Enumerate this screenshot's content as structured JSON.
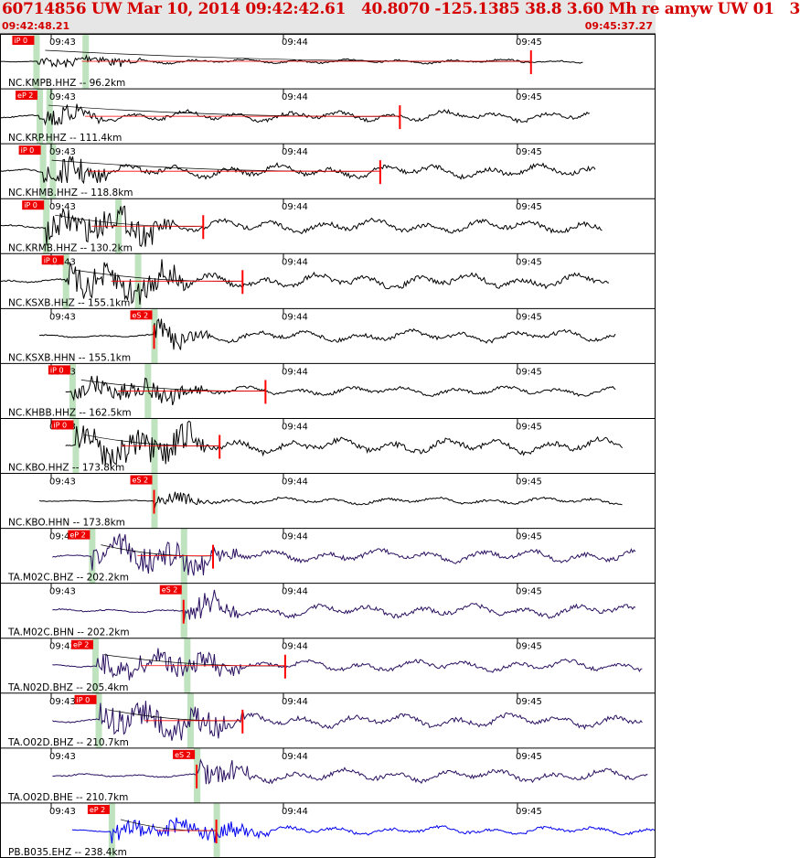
{
  "header": {
    "title": "60714856 UW Mar 10, 2014 09:42:42.61   40.8070 -125.1385 38.8 3.60 Mh re amyw UW 01   3",
    "start_time": "09:42:48.21",
    "end_time": "09:45:37.27"
  },
  "time_ticks": [
    "09:43",
    "09:44",
    "09:45"
  ],
  "colors": {
    "title": "#d40000",
    "header_bg": "#e6e6e6",
    "pick_marker": "#ff0000",
    "arrival_band": "#bfe3bf",
    "trace_nc": "#000000",
    "trace_ta": "#2a1060",
    "trace_pb": "#0000ee",
    "grid": "#000000"
  },
  "traces": [
    {
      "label": "NC.KMPB.HHZ -- 96.2km",
      "pick": "iP 0",
      "color": "#000000",
      "amp": 6,
      "start": 0.0,
      "end": 0.89,
      "pick_at": 0.055,
      "band": 0.13,
      "red_at": 0.81
    },
    {
      "label": "NC.KRP.HHZ -- 111.4km",
      "pick": "eP 2",
      "color": "#000000",
      "amp": 14,
      "start": 0.0,
      "end": 0.9,
      "pick_at": 0.06,
      "band": 0.075,
      "red_at": 0.61
    },
    {
      "label": "NC.KHMB.HHZ -- 118.8km",
      "pick": "iP 0",
      "color": "#000000",
      "amp": 18,
      "start": 0.0,
      "end": 0.91,
      "pick_at": 0.065,
      "band": 0.08,
      "red_at": 0.58
    },
    {
      "label": "NC.KRMB.HHZ -- 130.2km",
      "pick": "iP 0",
      "color": "#000000",
      "amp": 18,
      "start": 0.0,
      "end": 0.92,
      "pick_at": 0.07,
      "band": 0.18,
      "red_at": 0.31
    },
    {
      "label": "NC.KSXB.HHZ -- 155.1km",
      "pick": "iP 0",
      "color": "#000000",
      "amp": 20,
      "start": 0.0,
      "end": 0.93,
      "pick_at": 0.1,
      "band": 0.21,
      "red_at": 0.37
    },
    {
      "label": "NC.KSXB.HHN -- 155.1km",
      "pick": "eS 2",
      "color": "#000000",
      "amp": 15,
      "start": 0.06,
      "end": 0.94,
      "pick_at": 0.235,
      "band": 0.235,
      "red_at": 0.235
    },
    {
      "label": "NC.KHBB.HHZ -- 162.5km",
      "pick": "iP 0",
      "color": "#000000",
      "amp": 12,
      "start": 0.1,
      "end": 0.94,
      "pick_at": 0.11,
      "band": 0.225,
      "red_at": 0.405
    },
    {
      "label": "NC.KBO.HHZ -- 173.8km",
      "pick": "iP 0",
      "color": "#000000",
      "amp": 20,
      "start": 0.1,
      "end": 0.95,
      "pick_at": 0.115,
      "band": 0.235,
      "red_at": 0.335
    },
    {
      "label": "NC.KBO.HHN -- 173.8km",
      "pick": "eS 2",
      "color": "#000000",
      "amp": 9,
      "start": 0.06,
      "end": 0.95,
      "pick_at": 0.235,
      "band": 0.235,
      "red_at": 0.235
    },
    {
      "label": "TA.M02C.BHZ -- 202.2km",
      "pick": "eP 2",
      "color": "#2a1060",
      "amp": 17,
      "start": 0.08,
      "end": 0.97,
      "pick_at": 0.14,
      "band": 0.28,
      "red_at": 0.325
    },
    {
      "label": "TA.M02C.BHN -- 202.2km",
      "pick": "eS 2",
      "color": "#2a1060",
      "amp": 17,
      "start": 0.08,
      "end": 0.97,
      "pick_at": 0.28,
      "band": 0.28,
      "red_at": 0.28
    },
    {
      "label": "TA.N02D.BHZ -- 205.4km",
      "pick": "eP 2",
      "color": "#2a1060",
      "amp": 15,
      "start": 0.08,
      "end": 0.98,
      "pick_at": 0.145,
      "band": 0.285,
      "red_at": 0.435
    },
    {
      "label": "TA.O02D.BHZ -- 210.7km",
      "pick": "iP 0",
      "color": "#2a1060",
      "amp": 18,
      "start": 0.08,
      "end": 0.98,
      "pick_at": 0.15,
      "band": 0.29,
      "red_at": 0.37
    },
    {
      "label": "TA.O02D.BHE -- 210.7km",
      "pick": "eS 2",
      "color": "#2a1060",
      "amp": 17,
      "start": 0.08,
      "end": 0.99,
      "pick_at": 0.3,
      "band": 0.3,
      "red_at": 0.3
    },
    {
      "label": "PB.B035.EHZ -- 238.4km",
      "pick": "eP 2",
      "color": "#0000ee",
      "amp": 11,
      "start": 0.11,
      "end": 1.0,
      "pick_at": 0.17,
      "band": 0.33,
      "red_at": 0.33
    }
  ]
}
